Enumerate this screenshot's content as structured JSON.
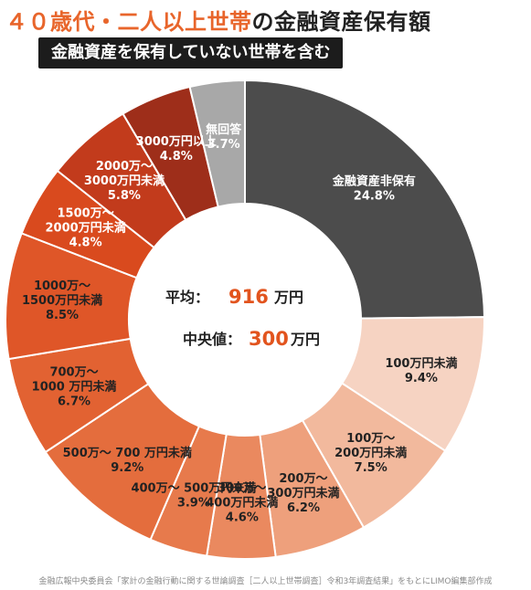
{
  "title_accent": "４０歳代・二人以上世帯",
  "title_rest": "の金融資産保有額",
  "subtitle": "金融資産を保有していない世帯を含む",
  "center": {
    "avg_label": "平均：",
    "avg_value": "916",
    "avg_unit": "万円",
    "median_label": "中央値：",
    "median_value": "300",
    "median_unit": "万円"
  },
  "source": "金融広報中央委員会「家計の金融行動に関する世論調査［二人以上世帯調査］令和3年調査結果」をもとにLIMO編集部作成",
  "colors": {
    "accent": "#e8652b",
    "center_value": "#e2541e"
  },
  "chart_data": {
    "type": "pie",
    "title": "４０歳代・二人以上世帯の金融資産保有額",
    "subtitle": "金融資産を保有していない世帯を含む",
    "unit": "%",
    "slices": [
      {
        "label": [
          "金融資産非保有"
        ],
        "value": 24.8,
        "display": "24.8%",
        "color": "#4c4c4c",
        "text_color": "#ffffff"
      },
      {
        "label": [
          "100万円未満"
        ],
        "value": 9.4,
        "display": "9.4%",
        "color": "#f6d3c2",
        "text_color": "#222222"
      },
      {
        "label": [
          "100万～",
          "200万円未満"
        ],
        "value": 7.5,
        "display": "7.5%",
        "color": "#f2b99d",
        "text_color": "#222222"
      },
      {
        "label": [
          "200万～",
          "300万円未満"
        ],
        "value": 6.2,
        "display": "6.2%",
        "color": "#eea07c",
        "text_color": "#222222"
      },
      {
        "label": [
          "300万～",
          "400万円未満"
        ],
        "value": 4.6,
        "display": "4.6%",
        "color": "#ea895f",
        "text_color": "#222222"
      },
      {
        "label": [
          "400万～ 500万円未満"
        ],
        "value": 3.9,
        "display": "3.9%",
        "color": "#e77a4c",
        "text_color": "#222222"
      },
      {
        "label": [
          "500万～ 700 万円未満"
        ],
        "value": 9.2,
        "display": "9.2%",
        "color": "#e46d3d",
        "text_color": "#222222"
      },
      {
        "label": [
          "700万～",
          "1000 万円未満"
        ],
        "value": 6.7,
        "display": "6.7%",
        "color": "#e26232",
        "text_color": "#222222"
      },
      {
        "label": [
          "1000万～",
          "1500万円未満"
        ],
        "value": 8.5,
        "display": "8.5%",
        "color": "#df5628",
        "text_color": "#222222"
      },
      {
        "label": [
          "1500万～",
          "2000万円未満"
        ],
        "value": 4.8,
        "display": "4.8%",
        "color": "#d94a1e",
        "text_color": "#ffffff"
      },
      {
        "label": [
          "2000万～",
          "3000万円未満"
        ],
        "value": 5.8,
        "display": "5.8%",
        "color": "#c23b1c",
        "text_color": "#ffffff"
      },
      {
        "label": [
          "3000万円以上"
        ],
        "value": 4.8,
        "display": "4.8%",
        "color": "#9e2e1a",
        "text_color": "#ffffff"
      },
      {
        "label": [
          "無回答"
        ],
        "value": 3.7,
        "display": "3.7%",
        "color": "#a8a8a8",
        "text_color": "#ffffff"
      }
    ]
  }
}
